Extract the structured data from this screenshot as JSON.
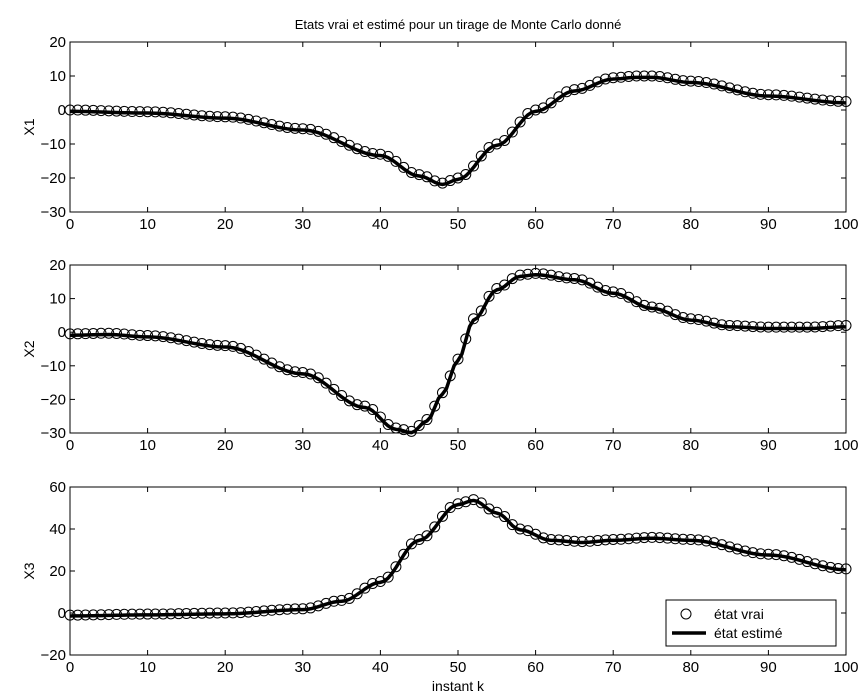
{
  "chart_data": [
    {
      "type": "line",
      "title": "Etats vrai et estimé pour un tirage de Monte Carlo donné",
      "ylabel": "X1",
      "xlabel": "",
      "xlim": [
        0,
        100
      ],
      "ylim": [
        -30,
        20
      ],
      "xticks": [
        "0",
        "10",
        "20",
        "30",
        "40",
        "50",
        "60",
        "70",
        "80",
        "90",
        "100"
      ],
      "yticks": [
        "-30",
        "-20",
        "-10",
        "0",
        "10",
        "20"
      ],
      "grid": false,
      "knots": [
        [
          0,
          0
        ],
        [
          10,
          -0.5
        ],
        [
          20,
          -2
        ],
        [
          30,
          -5.5
        ],
        [
          40,
          -13
        ],
        [
          45,
          -19
        ],
        [
          48,
          -21.5
        ],
        [
          50,
          -20
        ],
        [
          55,
          -10
        ],
        [
          60,
          0
        ],
        [
          65,
          6
        ],
        [
          70,
          9.5
        ],
        [
          73,
          10
        ],
        [
          75,
          10
        ],
        [
          80,
          8.5
        ],
        [
          90,
          4.5
        ],
        [
          100,
          2.5
        ]
      ],
      "series": [
        {
          "name": "état vrai",
          "style": "circles"
        },
        {
          "name": "état estimé",
          "style": "thick-line"
        }
      ]
    },
    {
      "type": "line",
      "title": "",
      "ylabel": "X2",
      "xlabel": "",
      "xlim": [
        0,
        100
      ],
      "ylim": [
        -30,
        20
      ],
      "xticks": [
        "0",
        "10",
        "20",
        "30",
        "40",
        "50",
        "60",
        "70",
        "80",
        "90",
        "100"
      ],
      "yticks": [
        "-30",
        "-20",
        "-10",
        "0",
        "10",
        "20"
      ],
      "grid": false,
      "knots": [
        [
          0,
          -0.5
        ],
        [
          5,
          -0.3
        ],
        [
          10,
          -1
        ],
        [
          20,
          -4
        ],
        [
          30,
          -12
        ],
        [
          38,
          -22
        ],
        [
          42,
          -28.5
        ],
        [
          44,
          -29.5
        ],
        [
          46,
          -26
        ],
        [
          48,
          -18
        ],
        [
          50,
          -8
        ],
        [
          52,
          4
        ],
        [
          55,
          13
        ],
        [
          58,
          17
        ],
        [
          60,
          17.5
        ],
        [
          65,
          16
        ],
        [
          70,
          12
        ],
        [
          75,
          7.5
        ],
        [
          80,
          4
        ],
        [
          85,
          2
        ],
        [
          90,
          1.5
        ],
        [
          95,
          1.5
        ],
        [
          100,
          2
        ]
      ],
      "series": [
        {
          "name": "état vrai",
          "style": "circles"
        },
        {
          "name": "état estimé",
          "style": "thick-line"
        }
      ]
    },
    {
      "type": "line",
      "title": "",
      "ylabel": "X3",
      "xlabel": "instant k",
      "xlim": [
        0,
        100
      ],
      "ylim": [
        -20,
        60
      ],
      "xticks": [
        "0",
        "10",
        "20",
        "30",
        "40",
        "50",
        "60",
        "70",
        "80",
        "90",
        "100"
      ],
      "yticks": [
        "-20",
        "0",
        "20",
        "40",
        "60"
      ],
      "grid": false,
      "knots": [
        [
          0,
          -1
        ],
        [
          10,
          -0.5
        ],
        [
          20,
          0
        ],
        [
          30,
          2
        ],
        [
          35,
          6
        ],
        [
          40,
          15
        ],
        [
          45,
          35
        ],
        [
          50,
          52
        ],
        [
          52,
          54
        ],
        [
          55,
          48
        ],
        [
          58,
          40
        ],
        [
          62,
          35
        ],
        [
          66,
          34
        ],
        [
          70,
          35
        ],
        [
          75,
          36
        ],
        [
          80,
          35
        ],
        [
          90,
          28
        ],
        [
          100,
          21
        ]
      ],
      "series": [
        {
          "name": "état vrai",
          "style": "circles"
        },
        {
          "name": "état estimé",
          "style": "thick-line"
        }
      ],
      "legend": "bottom-right"
    }
  ]
}
